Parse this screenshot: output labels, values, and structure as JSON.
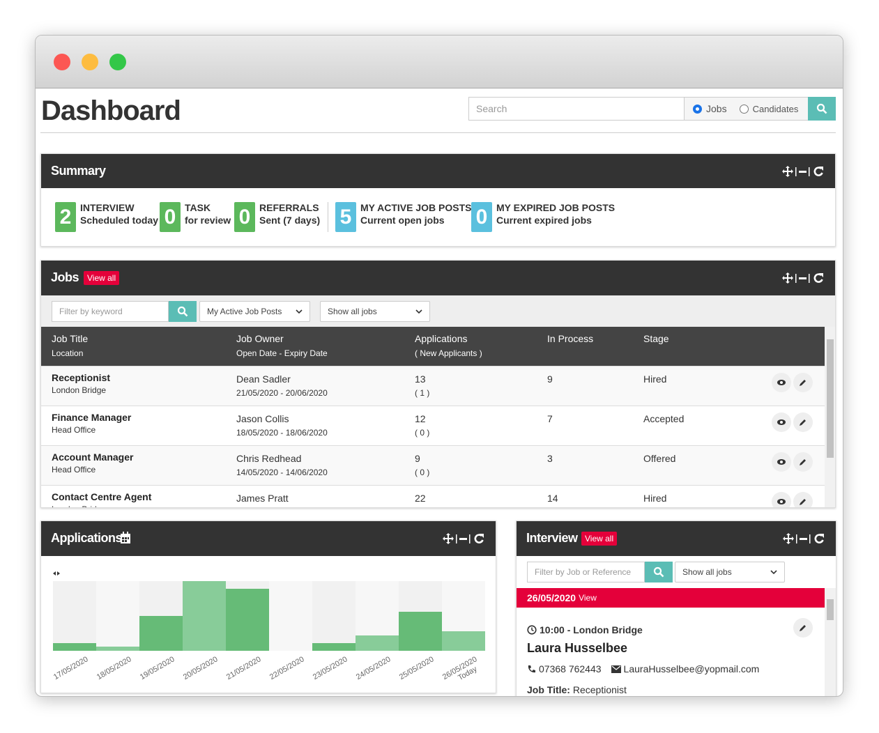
{
  "header": {
    "title": "Dashboard",
    "search_placeholder": "Search",
    "search_modes": [
      "Jobs",
      "Candidates"
    ]
  },
  "summary": {
    "title": "Summary",
    "items": [
      {
        "count": 2,
        "label": "INTERVIEW",
        "sub": "Scheduled today",
        "color": "#5cb85c"
      },
      {
        "count": 0,
        "label": "TASK",
        "sub": "for review",
        "color": "#5cb85c"
      },
      {
        "count": 0,
        "label": "REFERRALS",
        "sub": "Sent (7 days)",
        "color": "#5cb85c"
      },
      {
        "count": 5,
        "label": "MY ACTIVE JOB POSTS",
        "sub": "Current open jobs",
        "color": "#5bc0de"
      },
      {
        "count": 0,
        "label": "MY EXPIRED JOB POSTS",
        "sub": "Current expired jobs",
        "color": "#5bc0de"
      }
    ]
  },
  "jobs": {
    "title": "Jobs",
    "view_all": "View all",
    "filter_placeholder": "Filter by keyword",
    "selects": [
      "My Active Job Posts",
      "Show all jobs"
    ],
    "columns": [
      [
        "Job Title",
        "Location"
      ],
      [
        "Job Owner",
        "Open Date - Expiry Date"
      ],
      [
        "Applications",
        "( New Applicants )"
      ],
      [
        "In Process"
      ],
      [
        "Stage"
      ]
    ],
    "rows": [
      {
        "title": "Receptionist",
        "location": "London Bridge",
        "owner": "Dean Sadler",
        "dates": "21/05/2020 - 20/06/2020",
        "applications": 13,
        "new": "( 1 )",
        "in_process": 9,
        "stage": "Hired"
      },
      {
        "title": "Finance Manager",
        "location": "Head Office",
        "owner": "Jason Collis",
        "dates": "18/05/2020 - 18/06/2020",
        "applications": 12,
        "new": "( 0 )",
        "in_process": 7,
        "stage": "Accepted"
      },
      {
        "title": "Account Manager",
        "location": "Head Office",
        "owner": "Chris Redhead",
        "dates": "14/05/2020 - 14/06/2020",
        "applications": 9,
        "new": "( 0 )",
        "in_process": 3,
        "stage": "Offered"
      },
      {
        "title": "Contact Centre Agent",
        "location": "London Bridge",
        "owner": "James Pratt",
        "applications": 22,
        "in_process": 14,
        "stage": "Hired"
      }
    ]
  },
  "applications": {
    "title": "Applications",
    "chart": {
      "type": "bar",
      "categories": [
        "17/05/2020",
        "18/05/2020",
        "19/05/2020",
        "20/05/2020",
        "21/05/2020",
        "22/05/2020",
        "23/05/2020",
        "24/05/2020",
        "25/05/2020",
        "26/05/2020"
      ],
      "today_label": "Today",
      "values": [
        11,
        6,
        50,
        100,
        89,
        0,
        11,
        22,
        56,
        28
      ],
      "colors": [
        "#66bb77",
        "#88cc99",
        "#66bb77",
        "#88cc99",
        "#66bb77",
        "#88cc99",
        "#66bb77",
        "#88cc99",
        "#66bb77",
        "#88cc99"
      ],
      "ylim": [
        0,
        100
      ]
    }
  },
  "interview": {
    "title": "Interview",
    "view_all": "View all",
    "filter_placeholder": "Filter by Job or Reference",
    "select": "Show all jobs",
    "date": "26/05/2020",
    "view": "View",
    "time": "10:00 - London Bridge",
    "name": "Laura Husselbee",
    "phone": "07368 762443",
    "email": "LauraHusselbee@yopmail.com",
    "job_title_label": "Job Title:",
    "job_title": "Receptionist"
  }
}
